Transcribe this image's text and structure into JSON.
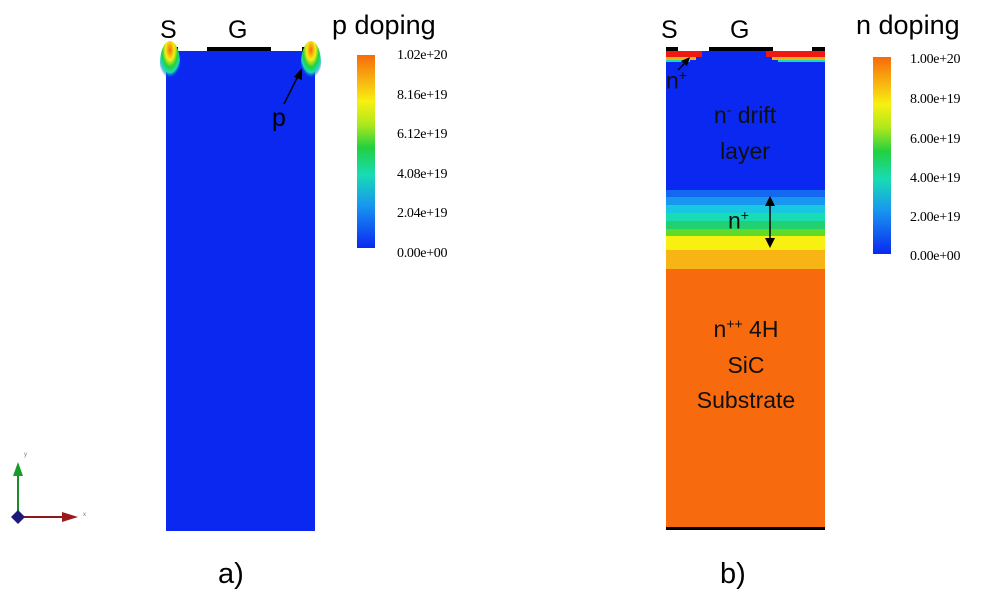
{
  "panel_a": {
    "caption": "a)",
    "source_label": "S",
    "gate_label": "G",
    "colorbar_title": "p doping",
    "colorbar_ticks": [
      "1.02e+20",
      "8.16e+19",
      "6.12e+19",
      "4.08e+19",
      "2.04e+19",
      "0.00e+00"
    ],
    "region_label": "p"
  },
  "panel_b": {
    "caption": "b)",
    "source_label": "S",
    "gate_label": "G",
    "colorbar_title": "n doping",
    "colorbar_ticks": [
      "1.00e+20",
      "8.00e+19",
      "6.00e+19",
      "4.00e+19",
      "2.00e+19",
      "0.00e+00"
    ],
    "source_region": {
      "base": "n",
      "sup": "+"
    },
    "drift_layer": {
      "base": "n",
      "sup": "-",
      "line1": " drift",
      "line2": "layer"
    },
    "buffer_layer": {
      "base": "n",
      "sup": "+"
    },
    "substrate": {
      "base": "n",
      "sup": "++",
      "line1": " 4H",
      "line2": "SiC",
      "line3": "Substrate"
    }
  },
  "colors": {
    "low": "#0a28f0",
    "high": "#f76a0d",
    "colormap": [
      "#0a28f0",
      "#1896f0",
      "#18dcb4",
      "#22d040",
      "#aee81c",
      "#f8f010",
      "#f8b810",
      "#f76a0d"
    ]
  },
  "axes_triad": {
    "x_label": "x",
    "y_label": "y"
  }
}
